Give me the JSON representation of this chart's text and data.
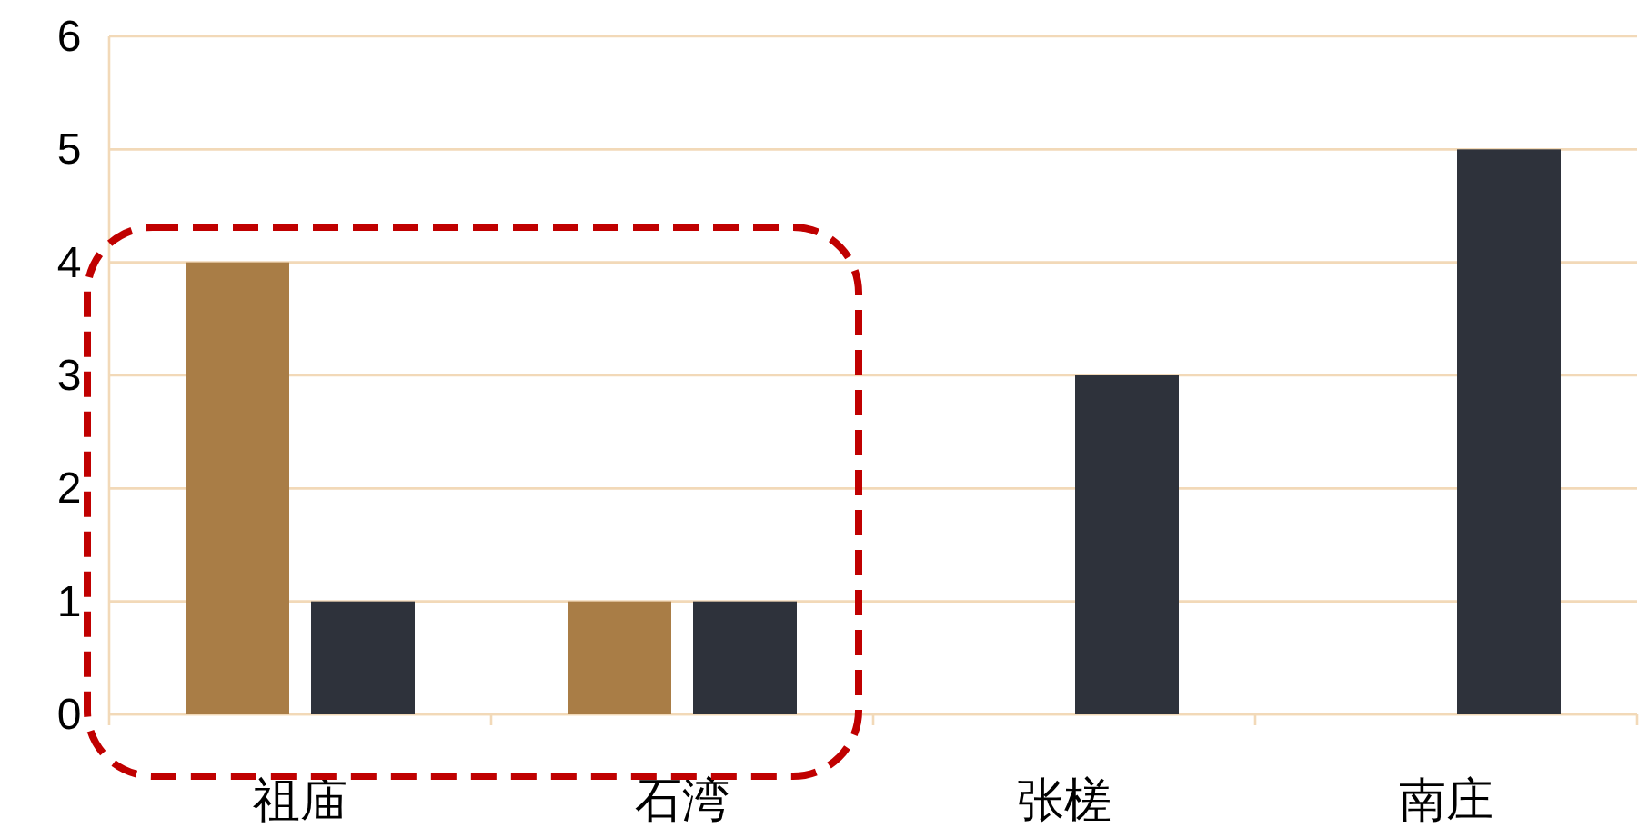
{
  "chart_data": {
    "type": "bar",
    "categories": [
      "祖庙",
      "石湾",
      "张槎",
      "南庄"
    ],
    "series": [
      {
        "color": "#a97d46",
        "values": [
          4,
          1,
          null,
          null
        ]
      },
      {
        "color": "#2e323b",
        "values": [
          1,
          1,
          3,
          5
        ]
      }
    ],
    "ylim": [
      0,
      6
    ],
    "yticks": [
      0,
      1,
      2,
      3,
      4,
      5,
      6
    ],
    "grid": "y"
  }
}
